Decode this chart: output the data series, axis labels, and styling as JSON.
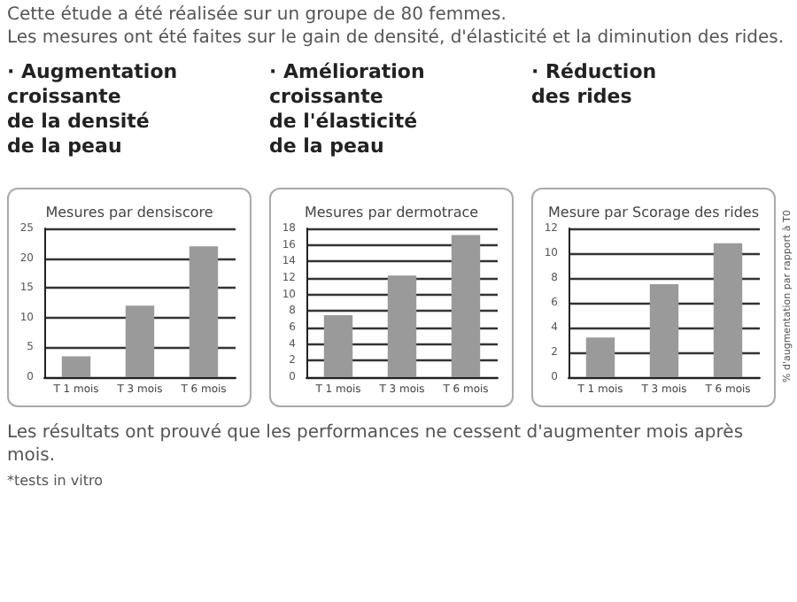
{
  "chart_data": [
    {
      "type": "bar",
      "title": "· Augmentation\ncroissante\nde la densité\nde la peau",
      "subtitle": "Mesures par densiscore",
      "categories": [
        "T 1 mois",
        "T 3 mois",
        "T 6 mois"
      ],
      "values": [
        3.5,
        12,
        22
      ],
      "color": "#9a9a9a",
      "ylim": [
        0,
        25
      ],
      "yticks": [
        0,
        5,
        10,
        15,
        20,
        25
      ],
      "grid": "y",
      "annotations": [
        "Cette étude a été réalisée sur un groupe de 80 femmes.",
        "Les mesures ont été faites sur le gain de densité, d'élasticité et la diminution des rides."
      ]
    },
    {
      "type": "bar",
      "title": "· Amélioration\ncroissante\nde l'élasticité\nde la peau",
      "subtitle": "Mesures par dermotrace",
      "categories": [
        "T 1 mois",
        "T 3 mois",
        "T 6 mois"
      ],
      "values": [
        7.5,
        12.3,
        17.2
      ],
      "color": "#9a9a9a",
      "ylim": [
        0,
        18
      ],
      "yticks": [
        0,
        2,
        4,
        6,
        8,
        10,
        12,
        14,
        16,
        18
      ],
      "grid": "y"
    },
    {
      "type": "bar",
      "title": "· Réduction\ndes rides",
      "subtitle": "Mesure par Scorage des rides",
      "ylabel": "% d'augmentation par rapport à T0",
      "categories": [
        "T 1 mois",
        "T 3 mois",
        "T 6 mois"
      ],
      "values": [
        3.2,
        7.5,
        10.8
      ],
      "color": "#9a9a9a",
      "ylim": [
        0,
        12
      ],
      "yticks": [
        0,
        2,
        4,
        6,
        8,
        10,
        12
      ],
      "grid": "y",
      "annotations": [
        "Les résultats ont prouvé que les performances ne cessent d'augmenter mois après mois.",
        "*tests in vitro"
      ]
    }
  ]
}
